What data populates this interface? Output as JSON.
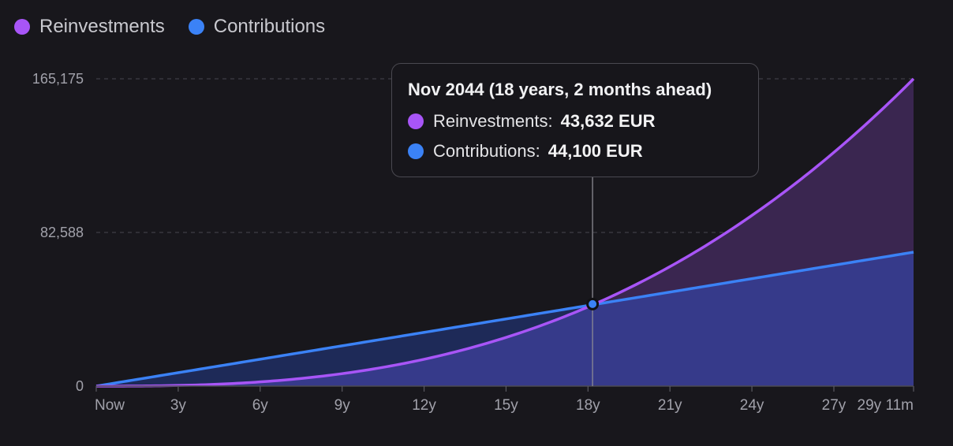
{
  "legend": [
    {
      "label": "Reinvestments",
      "color": "#a855f7"
    },
    {
      "label": "Contributions",
      "color": "#3b82f6"
    }
  ],
  "tooltip": {
    "title": "Nov 2044 (18 years, 2 months ahead)",
    "rows": [
      {
        "label": "Reinvestments:",
        "value": "43,632 EUR",
        "color": "#a855f7"
      },
      {
        "label": "Contributions:",
        "value": "44,100 EUR",
        "color": "#3b82f6"
      }
    ]
  },
  "chart_data": {
    "type": "area",
    "x_ticks": [
      {
        "label": "Now",
        "x": 0
      },
      {
        "label": "3y",
        "x": 36
      },
      {
        "label": "6y",
        "x": 72
      },
      {
        "label": "9y",
        "x": 108
      },
      {
        "label": "12y",
        "x": 144
      },
      {
        "label": "15y",
        "x": 180
      },
      {
        "label": "18y",
        "x": 216
      },
      {
        "label": "21y",
        "x": 252
      },
      {
        "label": "24y",
        "x": 288
      },
      {
        "label": "27y",
        "x": 324
      },
      {
        "label": "29y 11m",
        "x": 359
      }
    ],
    "x_unit": "months from now",
    "x_range": [
      0,
      359
    ],
    "y_ticks": [
      {
        "label": "0",
        "value": 0
      },
      {
        "label": "82,588",
        "value": 82588
      },
      {
        "label": "165,175",
        "value": 165175
      }
    ],
    "ylim": [
      0,
      165175
    ],
    "grid": "horizontal dashed",
    "series": [
      {
        "name": "Reinvestments",
        "color": "#a855f7",
        "fill": "#3a2650",
        "curve": "exponential",
        "start_value": 0,
        "end_value": 165175,
        "highlight": {
          "x": 218,
          "value": 43632
        }
      },
      {
        "name": "Contributions",
        "color": "#3b82f6",
        "fill": "#363a8a",
        "curve": "linear",
        "start_value": 0,
        "end_value": 72000,
        "highlight": {
          "x": 218,
          "value": 44100
        }
      }
    ],
    "hover": {
      "x": 218
    }
  }
}
